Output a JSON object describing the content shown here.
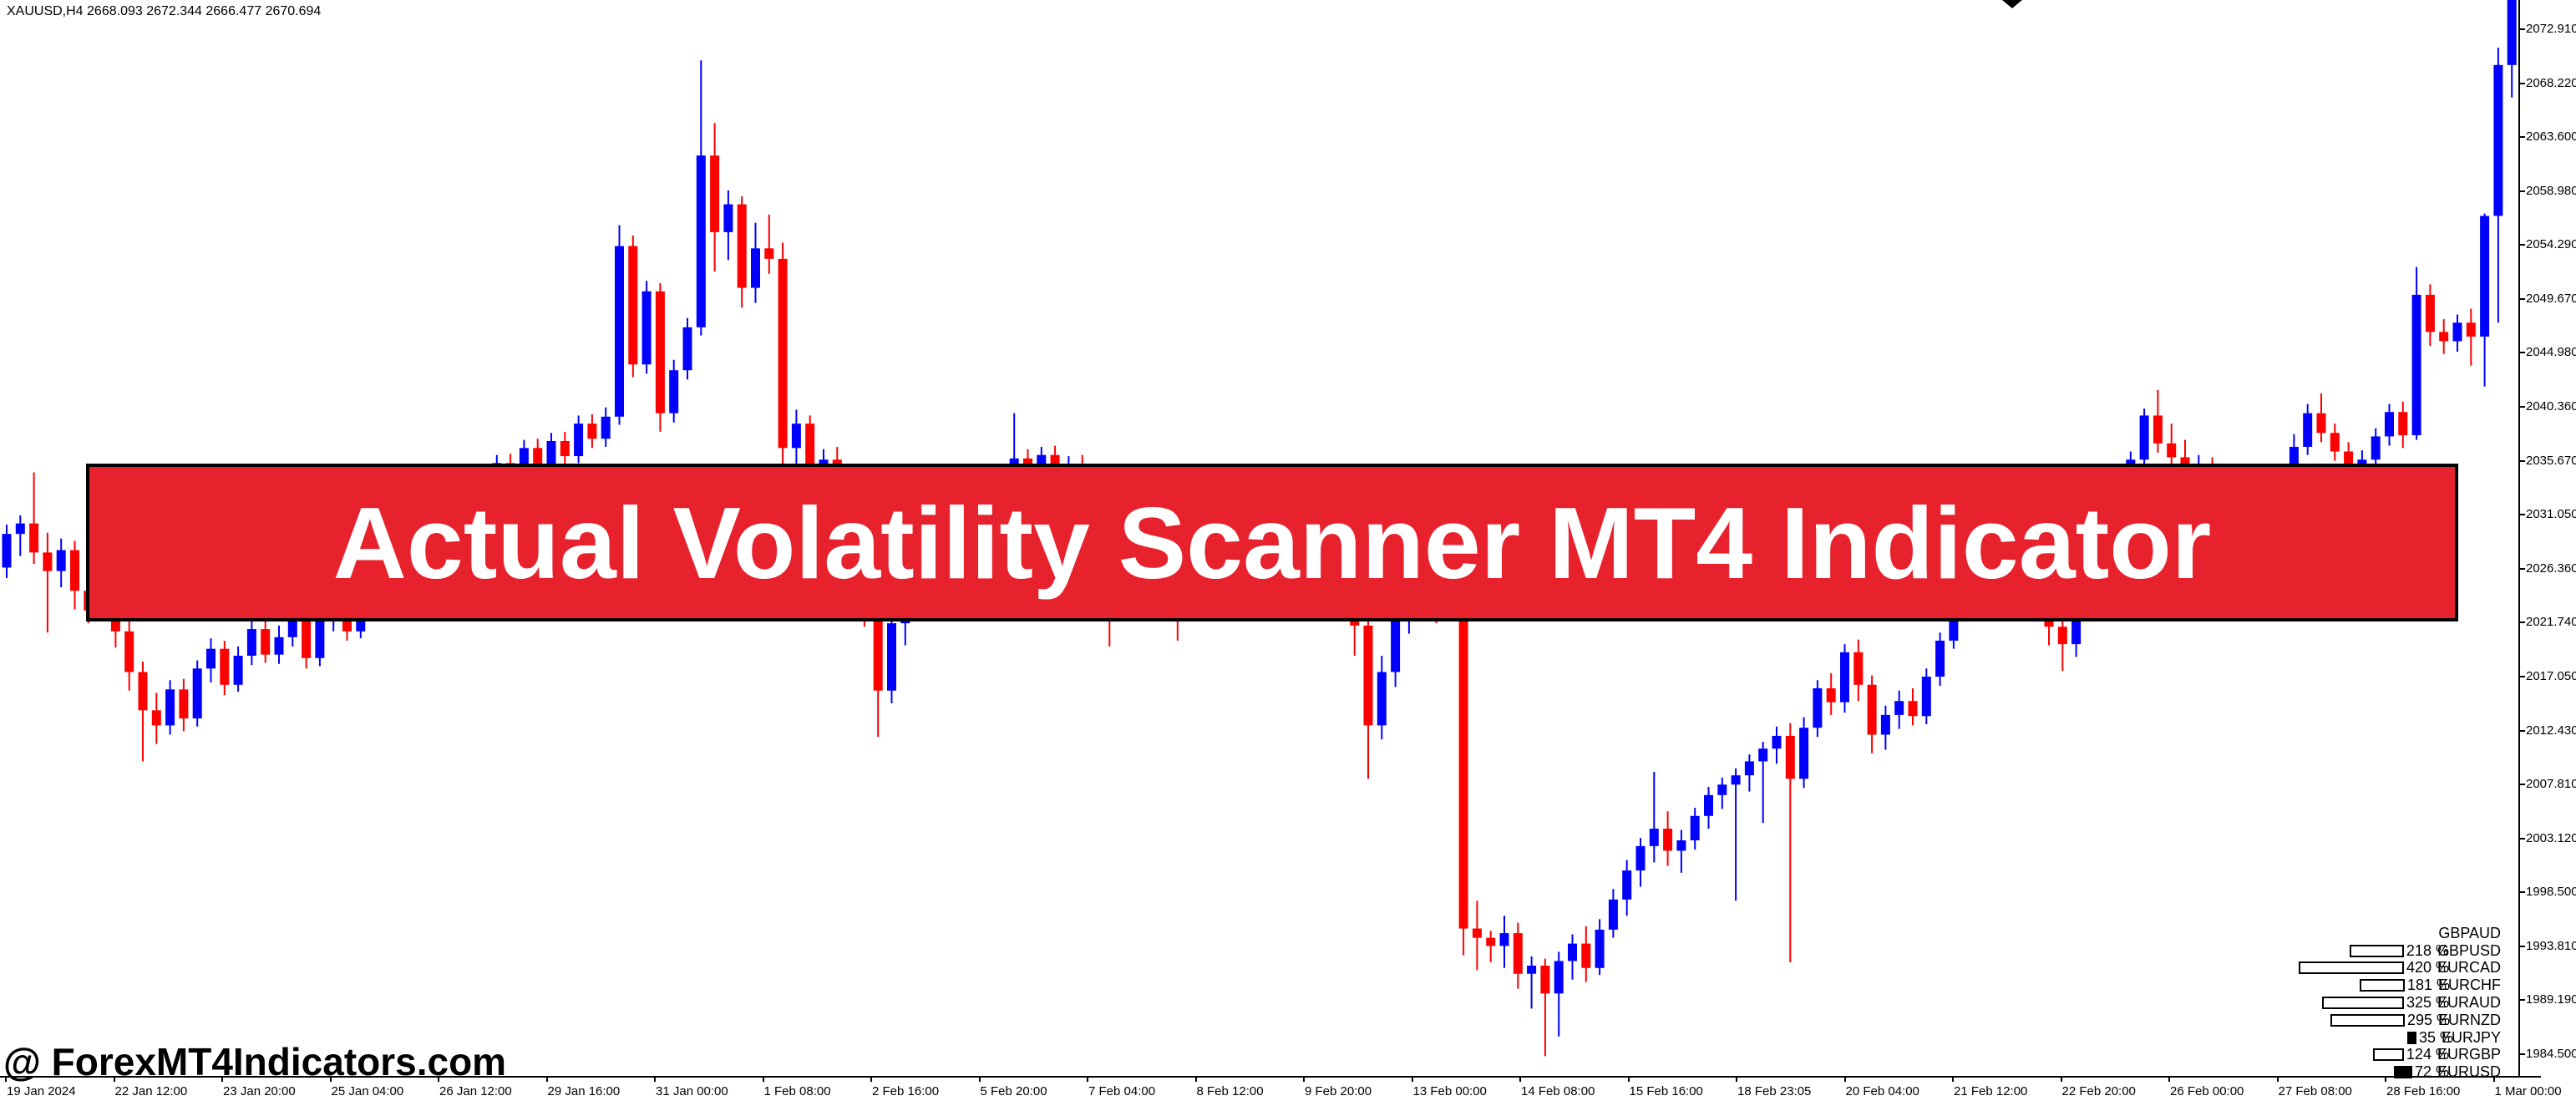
{
  "header": {
    "ohlc_line": "XAUUSD,H4  2668.093 2672.344 2666.477 2670.694"
  },
  "banner": {
    "text": "Actual Volatility Scanner MT4 Indicator",
    "bg_color": "#E8222D",
    "text_color": "#FFFFFF",
    "border_color": "#000000"
  },
  "watermark": {
    "text": "@ ForexMT4Indicators.com"
  },
  "cursor_marker": {
    "type": "down-arrow",
    "color": "#000000"
  },
  "price_axis": {
    "labels": [
      "2072.910",
      "2068.220",
      "2063.600",
      "2058.980",
      "2054.290",
      "2049.670",
      "2044.980",
      "2040.360",
      "2035.670",
      "2031.050",
      "2026.360",
      "2021.740",
      "2017.050",
      "2012.430",
      "2007.810",
      "2003.120",
      "1998.500",
      "1993.810",
      "1989.190",
      "1984.500"
    ]
  },
  "time_axis": {
    "labels": [
      "19 Jan 2024",
      "22 Jan 12:00",
      "23 Jan 20:00",
      "25 Jan 04:00",
      "26 Jan 12:00",
      "29 Jan 16:00",
      "31 Jan 00:00",
      "1 Feb 08:00",
      "2 Feb 16:00",
      "5 Feb 20:00",
      "7 Feb 04:00",
      "8 Feb 12:00",
      "9 Feb 20:00",
      "13 Feb 00:00",
      "14 Feb 08:00",
      "15 Feb 16:00",
      "18 Feb 23:05",
      "20 Feb 04:00",
      "21 Feb 12:00",
      "22 Feb 20:00",
      "26 Feb 00:00",
      "27 Feb 08:00",
      "28 Feb 16:00",
      "1 Mar 00:00"
    ]
  },
  "scanner_panel": {
    "rows": [
      {
        "pair": "GBPAUD",
        "value_label": "",
        "value": 0,
        "bar_fill": "none"
      },
      {
        "pair": "GBPUSD",
        "value_label": "218 %",
        "value": 218,
        "bar_fill": "open"
      },
      {
        "pair": "EURCAD",
        "value_label": "420 %",
        "value": 420,
        "bar_fill": "open"
      },
      {
        "pair": "EURCHF",
        "value_label": "181 %",
        "value": 181,
        "bar_fill": "open"
      },
      {
        "pair": "EURAUD",
        "value_label": "325 %",
        "value": 325,
        "bar_fill": "open"
      },
      {
        "pair": "EURNZD",
        "value_label": "295 %",
        "value": 295,
        "bar_fill": "open"
      },
      {
        "pair": "EURJPY",
        "value_label": "35 %",
        "value": 35,
        "bar_fill": "filled"
      },
      {
        "pair": "EURGBP",
        "value_label": "124 %",
        "value": 124,
        "bar_fill": "open"
      },
      {
        "pair": "EURUSD",
        "value_label": "72 %",
        "value": 72,
        "bar_fill": "filled"
      }
    ]
  },
  "chart_data": {
    "type": "candlestick",
    "symbol": "XAUUSD",
    "timeframe": "H4",
    "title": "XAUUSD H4 candlestick chart, 19 Jan 2024 - 1 Mar 2024",
    "price_range": [
      1982.7,
      2075.4
    ],
    "up_color": "#0000FE",
    "down_color": "#FD0000",
    "grid": false,
    "candles": [
      [
        2026.5,
        2030.2,
        2025.6,
        2029.4
      ],
      [
        2029.4,
        2031.0,
        2027.5,
        2030.3
      ],
      [
        2030.3,
        2034.7,
        2026.8,
        2027.8
      ],
      [
        2027.8,
        2029.5,
        2020.9,
        2026.2
      ],
      [
        2026.2,
        2029.0,
        2024.8,
        2028.0
      ],
      [
        2028.0,
        2028.8,
        2022.9,
        2024.5
      ],
      [
        2024.5,
        2026.0,
        2021.7,
        2022.8
      ],
      [
        2022.8,
        2025.3,
        2021.9,
        2024.0
      ],
      [
        2024.0,
        2024.8,
        2019.6,
        2021.0
      ],
      [
        2021.0,
        2022.2,
        2015.9,
        2017.5
      ],
      [
        2017.5,
        2018.4,
        2009.8,
        2014.2
      ],
      [
        2014.2,
        2015.7,
        2011.3,
        2012.9
      ],
      [
        2012.9,
        2016.8,
        2012.1,
        2016.0
      ],
      [
        2016.0,
        2016.9,
        2012.4,
        2013.5
      ],
      [
        2013.5,
        2018.5,
        2012.8,
        2017.8
      ],
      [
        2017.8,
        2020.4,
        2016.6,
        2019.5
      ],
      [
        2019.5,
        2020.2,
        2015.5,
        2016.4
      ],
      [
        2016.4,
        2019.7,
        2015.8,
        2018.9
      ],
      [
        2018.9,
        2022.0,
        2018.1,
        2021.2
      ],
      [
        2021.2,
        2022.1,
        2018.3,
        2019.0
      ],
      [
        2019.0,
        2021.5,
        2018.2,
        2020.5
      ],
      [
        2020.5,
        2023.1,
        2019.7,
        2022.3
      ],
      [
        2022.3,
        2023.0,
        2017.8,
        2018.7
      ],
      [
        2018.7,
        2022.6,
        2018.0,
        2021.9
      ],
      [
        2021.9,
        2024.2,
        2021.0,
        2023.4
      ],
      [
        2023.4,
        2024.0,
        2020.2,
        2021.0
      ],
      [
        2021.0,
        2025.5,
        2020.4,
        2024.8
      ],
      [
        2024.8,
        2027.2,
        2024.0,
        2026.5
      ],
      [
        2026.5,
        2027.3,
        2024.3,
        2025.1
      ],
      [
        2025.1,
        2028.6,
        2024.5,
        2027.9
      ],
      [
        2027.9,
        2028.7,
        2025.2,
        2026.0
      ],
      [
        2026.0,
        2029.0,
        2025.3,
        2028.3
      ],
      [
        2028.3,
        2030.8,
        2027.6,
        2030.1
      ],
      [
        2030.1,
        2033.1,
        2029.4,
        2032.4
      ],
      [
        2032.4,
        2033.2,
        2030.2,
        2031.0
      ],
      [
        2031.0,
        2034.5,
        2030.4,
        2033.8
      ],
      [
        2033.8,
        2036.2,
        2033.0,
        2035.5
      ],
      [
        2035.5,
        2036.3,
        2033.4,
        2034.2
      ],
      [
        2034.2,
        2037.5,
        2033.6,
        2036.8
      ],
      [
        2036.8,
        2037.6,
        2034.2,
        2035.0
      ],
      [
        2035.0,
        2038.1,
        2034.4,
        2037.4
      ],
      [
        2037.4,
        2038.2,
        2035.3,
        2036.1
      ],
      [
        2036.1,
        2039.6,
        2035.5,
        2038.9
      ],
      [
        2038.9,
        2039.7,
        2036.8,
        2037.6
      ],
      [
        2037.6,
        2040.3,
        2036.9,
        2039.5
      ],
      [
        2039.5,
        2056.0,
        2038.8,
        2054.2
      ],
      [
        2054.2,
        2055.1,
        2042.9,
        2044.0
      ],
      [
        2044.0,
        2051.2,
        2043.2,
        2050.3
      ],
      [
        2050.3,
        2051.0,
        2038.2,
        2039.8
      ],
      [
        2039.8,
        2044.4,
        2039.0,
        2043.5
      ],
      [
        2043.5,
        2048.0,
        2042.7,
        2047.2
      ],
      [
        2047.2,
        2070.2,
        2046.5,
        2062.0
      ],
      [
        2062.0,
        2064.8,
        2052.0,
        2055.4
      ],
      [
        2055.4,
        2059.0,
        2053.0,
        2057.8
      ],
      [
        2057.8,
        2058.5,
        2048.9,
        2050.6
      ],
      [
        2050.6,
        2056.2,
        2049.3,
        2054.0
      ],
      [
        2054.0,
        2056.9,
        2051.8,
        2053.1
      ],
      [
        2053.1,
        2054.5,
        2034.9,
        2036.8
      ],
      [
        2036.8,
        2040.1,
        2033.5,
        2038.9
      ],
      [
        2038.9,
        2039.6,
        2031.8,
        2033.4
      ],
      [
        2033.4,
        2036.7,
        2031.9,
        2035.8
      ],
      [
        2035.8,
        2036.9,
        2032.4,
        2034.6
      ],
      [
        2034.6,
        2035.2,
        2028.8,
        2030.1
      ],
      [
        2030.1,
        2031.0,
        2021.4,
        2022.6
      ],
      [
        2022.6,
        2023.8,
        2011.9,
        2015.9
      ],
      [
        2015.9,
        2023.0,
        2014.8,
        2021.7
      ],
      [
        2021.7,
        2025.4,
        2019.8,
        2024.3
      ],
      [
        2024.3,
        2026.0,
        2022.1,
        2025.2
      ],
      [
        2025.2,
        2028.2,
        2024.4,
        2027.5
      ],
      [
        2027.5,
        2030.5,
        2026.8,
        2029.8
      ],
      [
        2029.8,
        2030.6,
        2027.5,
        2028.4
      ],
      [
        2028.4,
        2031.9,
        2027.7,
        2031.2
      ],
      [
        2031.2,
        2032.0,
        2029.1,
        2030.0
      ],
      [
        2030.0,
        2033.3,
        2029.3,
        2032.6
      ],
      [
        2032.6,
        2039.8,
        2031.9,
        2035.9
      ],
      [
        2035.9,
        2036.7,
        2033.2,
        2034.1
      ],
      [
        2034.1,
        2036.9,
        2033.4,
        2036.2
      ],
      [
        2036.2,
        2037.0,
        2032.9,
        2033.8
      ],
      [
        2033.8,
        2036.1,
        2033.0,
        2035.4
      ],
      [
        2035.4,
        2036.2,
        2032.0,
        2032.9
      ],
      [
        2032.9,
        2033.7,
        2030.6,
        2031.5
      ],
      [
        2031.5,
        2032.3,
        2019.7,
        2029.8
      ],
      [
        2029.8,
        2033.1,
        2029.0,
        2032.4
      ],
      [
        2032.4,
        2033.2,
        2029.7,
        2030.6
      ],
      [
        2030.6,
        2033.7,
        2029.9,
        2033.0
      ],
      [
        2033.0,
        2033.8,
        2030.3,
        2031.2
      ],
      [
        2031.2,
        2032.0,
        2020.2,
        2029.5
      ],
      [
        2029.5,
        2032.5,
        2028.8,
        2031.8
      ],
      [
        2031.8,
        2032.6,
        2029.5,
        2030.4
      ],
      [
        2030.4,
        2033.6,
        2029.8,
        2032.9
      ],
      [
        2032.9,
        2033.7,
        2030.7,
        2031.6
      ],
      [
        2031.6,
        2034.2,
        2030.9,
        2033.5
      ],
      [
        2033.5,
        2034.1,
        2031.1,
        2032.0
      ],
      [
        2032.0,
        2032.8,
        2029.8,
        2030.7
      ],
      [
        2030.7,
        2032.6,
        2029.9,
        2031.9
      ],
      [
        2031.9,
        2032.7,
        2028.5,
        2029.4
      ],
      [
        2029.4,
        2031.5,
        2028.6,
        2030.8
      ],
      [
        2030.8,
        2031.6,
        2027.6,
        2028.5
      ],
      [
        2028.5,
        2030.4,
        2027.8,
        2029.7
      ],
      [
        2029.7,
        2030.4,
        2018.9,
        2021.5
      ],
      [
        2021.5,
        2022.4,
        2008.3,
        2012.9
      ],
      [
        2012.9,
        2018.9,
        2011.7,
        2017.5
      ],
      [
        2017.5,
        2022.8,
        2016.2,
        2021.9
      ],
      [
        2021.9,
        2026.5,
        2020.8,
        2025.3
      ],
      [
        2025.3,
        2027.0,
        2022.9,
        2024.1
      ],
      [
        2024.1,
        2025.8,
        2021.7,
        2023.2
      ],
      [
        2023.2,
        2026.4,
        2022.5,
        2025.7
      ],
      [
        2025.7,
        2026.3,
        1993.1,
        1995.4
      ],
      [
        1995.4,
        1997.8,
        1991.8,
        1994.6
      ],
      [
        1994.6,
        1995.2,
        1992.5,
        1993.9
      ],
      [
        1993.9,
        1996.5,
        1992.0,
        1995.0
      ],
      [
        1995.0,
        1995.9,
        1990.2,
        1991.5
      ],
      [
        1991.5,
        1993.0,
        1988.5,
        1992.2
      ],
      [
        1992.2,
        1992.8,
        1984.4,
        1989.8
      ],
      [
        1989.8,
        1993.4,
        1986.1,
        1992.6
      ],
      [
        1992.6,
        1994.9,
        1991.0,
        1994.1
      ],
      [
        1994.1,
        1995.6,
        1990.8,
        1992.0
      ],
      [
        1992.0,
        1996.2,
        1991.4,
        1995.3
      ],
      [
        1995.3,
        1998.8,
        1994.6,
        1997.9
      ],
      [
        1997.9,
        2001.3,
        1996.5,
        2000.4
      ],
      [
        2000.4,
        2003.2,
        1999.0,
        2002.5
      ],
      [
        2002.5,
        2008.9,
        2001.1,
        2004.0
      ],
      [
        2004.0,
        2005.5,
        2000.8,
        2002.1
      ],
      [
        2002.1,
        2003.9,
        2000.2,
        2003.0
      ],
      [
        2003.0,
        2005.8,
        2002.2,
        2005.1
      ],
      [
        2005.1,
        2007.6,
        2004.0,
        2006.9
      ],
      [
        2006.9,
        2008.4,
        2005.7,
        2007.8
      ],
      [
        2007.8,
        2009.2,
        1997.8,
        2008.6
      ],
      [
        2008.6,
        2010.4,
        2007.2,
        2009.8
      ],
      [
        2009.8,
        2011.5,
        2004.5,
        2010.9
      ],
      [
        2010.9,
        2012.8,
        2009.6,
        2012.0
      ],
      [
        2012.0,
        2013.1,
        1992.5,
        2008.3
      ],
      [
        2008.3,
        2013.6,
        2007.5,
        2012.7
      ],
      [
        2012.7,
        2016.8,
        2011.9,
        2016.1
      ],
      [
        2016.1,
        2017.4,
        2013.8,
        2014.9
      ],
      [
        2014.9,
        2019.9,
        2014.0,
        2019.2
      ],
      [
        2019.2,
        2020.3,
        2015.0,
        2016.4
      ],
      [
        2016.4,
        2017.2,
        2010.5,
        2012.1
      ],
      [
        2012.1,
        2014.6,
        2010.8,
        2013.8
      ],
      [
        2013.8,
        2015.9,
        2012.6,
        2015.0
      ],
      [
        2015.0,
        2016.1,
        2012.9,
        2013.7
      ],
      [
        2013.7,
        2017.8,
        2013.0,
        2017.1
      ],
      [
        2017.1,
        2020.9,
        2016.3,
        2020.2
      ],
      [
        2020.2,
        2023.8,
        2019.5,
        2023.1
      ],
      [
        2023.1,
        2025.4,
        2022.3,
        2024.6
      ],
      [
        2024.6,
        2027.6,
        2023.9,
        2026.9
      ],
      [
        2026.9,
        2027.7,
        2024.6,
        2025.4
      ],
      [
        2025.4,
        2028.5,
        2024.8,
        2027.8
      ],
      [
        2027.8,
        2030.0,
        2027.0,
        2029.3
      ],
      [
        2029.3,
        2030.1,
        2027.2,
        2028.0
      ],
      [
        2028.0,
        2029.2,
        2019.8,
        2021.4
      ],
      [
        2021.4,
        2022.6,
        2017.6,
        2019.9
      ],
      [
        2019.9,
        2024.3,
        2018.8,
        2023.5
      ],
      [
        2023.5,
        2027.5,
        2022.8,
        2026.8
      ],
      [
        2026.8,
        2030.1,
        2026.0,
        2029.4
      ],
      [
        2029.4,
        2031.7,
        2028.6,
        2031.0
      ],
      [
        2031.0,
        2036.5,
        2030.1,
        2035.8
      ],
      [
        2035.8,
        2040.2,
        2035.0,
        2039.6
      ],
      [
        2039.6,
        2041.8,
        2036.4,
        2037.2
      ],
      [
        2037.2,
        2038.9,
        2034.8,
        2036.0
      ],
      [
        2036.0,
        2037.5,
        2033.9,
        2034.7
      ],
      [
        2034.7,
        2036.2,
        2032.8,
        2035.4
      ],
      [
        2035.4,
        2036.0,
        2032.2,
        2033.0
      ],
      [
        2033.0,
        2033.8,
        2030.6,
        2031.5
      ],
      [
        2031.5,
        2033.6,
        2030.8,
        2032.8
      ],
      [
        2032.8,
        2033.6,
        2030.0,
        2030.9
      ],
      [
        2030.9,
        2033.0,
        2030.1,
        2032.2
      ],
      [
        2032.2,
        2035.4,
        2031.5,
        2034.6
      ],
      [
        2034.6,
        2038.0,
        2033.9,
        2036.9
      ],
      [
        2036.9,
        2040.6,
        2036.2,
        2039.8
      ],
      [
        2039.8,
        2041.5,
        2037.3,
        2038.1
      ],
      [
        2038.1,
        2038.9,
        2035.7,
        2036.5
      ],
      [
        2036.5,
        2037.3,
        2034.1,
        2034.9
      ],
      [
        2034.9,
        2036.6,
        2034.2,
        2035.8
      ],
      [
        2035.8,
        2038.5,
        2035.0,
        2037.8
      ],
      [
        2037.8,
        2040.6,
        2037.0,
        2039.9
      ],
      [
        2039.9,
        2040.8,
        2036.8,
        2037.9
      ],
      [
        2037.9,
        2052.4,
        2037.5,
        2050.0
      ],
      [
        2050.0,
        2050.9,
        2045.6,
        2046.8
      ],
      [
        2046.8,
        2047.9,
        2044.9,
        2046.0
      ],
      [
        2046.0,
        2048.3,
        2045.1,
        2047.6
      ],
      [
        2047.6,
        2048.8,
        2043.9,
        2046.4
      ],
      [
        2046.4,
        2057.0,
        2042.1,
        2056.8
      ],
      [
        2056.8,
        2071.3,
        2047.6,
        2069.8
      ],
      [
        2069.8,
        2076.5,
        2067.0,
        2075.8
      ]
    ]
  }
}
